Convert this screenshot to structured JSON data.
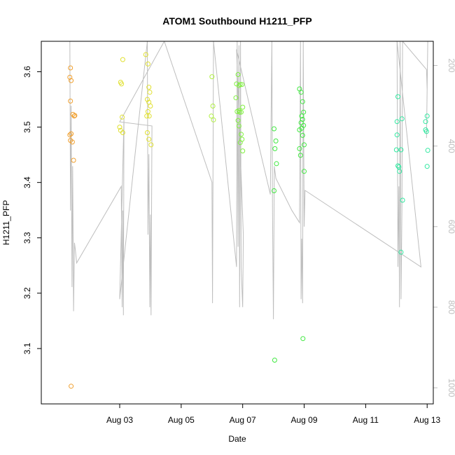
{
  "chart_data": {
    "type": "scatter",
    "title": "ATOM1 Southbound H1211_PFP",
    "xlabel": "Date",
    "ylabel": "H1211_PFP",
    "xlim": [
      0.45,
      13.2
    ],
    "ylim": [
      3.0,
      3.655
    ],
    "right_axis": {
      "range": [
        140,
        1040
      ],
      "reversed": true,
      "ticks": [
        200,
        400,
        600,
        800,
        1000
      ],
      "color": "#bebebe"
    },
    "x_ticks": [
      {
        "value": 3,
        "label": "Aug 03"
      },
      {
        "value": 5,
        "label": "Aug 05"
      },
      {
        "value": 7,
        "label": "Aug 07"
      },
      {
        "value": 9,
        "label": "Aug 09"
      },
      {
        "value": 11,
        "label": "Aug 11"
      },
      {
        "value": 13,
        "label": "Aug 13"
      }
    ],
    "y_ticks": [
      {
        "value": 3.1,
        "label": "3.1"
      },
      {
        "value": 3.2,
        "label": "3.2"
      },
      {
        "value": 3.3,
        "label": "3.3"
      },
      {
        "value": 3.4,
        "label": "3.4"
      },
      {
        "value": 3.5,
        "label": "3.5"
      },
      {
        "value": 3.6,
        "label": "3.6"
      }
    ],
    "grid": false,
    "legend": "none",
    "series": [
      {
        "color": "#f0a030",
        "points": [
          [
            1.4,
            3.607
          ],
          [
            1.38,
            3.59
          ],
          [
            1.42,
            3.584
          ],
          [
            1.4,
            3.547
          ],
          [
            1.48,
            3.523
          ],
          [
            1.52,
            3.52
          ],
          [
            1.54,
            3.521
          ],
          [
            1.42,
            3.488
          ],
          [
            1.38,
            3.486
          ],
          [
            1.4,
            3.476
          ],
          [
            1.46,
            3.473
          ],
          [
            1.5,
            3.44
          ],
          [
            1.42,
            3.032
          ]
        ]
      },
      {
        "color": "#e0e030",
        "points": [
          [
            3.1,
            3.622
          ],
          [
            3.03,
            3.581
          ],
          [
            3.06,
            3.578
          ],
          [
            3.0,
            3.5
          ],
          [
            3.08,
            3.518
          ],
          [
            3.03,
            3.494
          ],
          [
            3.1,
            3.49
          ],
          [
            3.85,
            3.631
          ],
          [
            3.92,
            3.614
          ],
          [
            3.95,
            3.572
          ],
          [
            3.98,
            3.563
          ],
          [
            3.9,
            3.55
          ],
          [
            3.95,
            3.545
          ],
          [
            4.0,
            3.538
          ],
          [
            3.92,
            3.528
          ],
          [
            3.96,
            3.52
          ],
          [
            3.88,
            3.52
          ],
          [
            3.9,
            3.49
          ],
          [
            3.95,
            3.478
          ],
          [
            4.02,
            3.468
          ]
        ]
      },
      {
        "color": "#b0f040",
        "points": [
          [
            6.0,
            3.591
          ],
          [
            6.03,
            3.538
          ],
          [
            5.98,
            3.52
          ],
          [
            6.05,
            3.513
          ]
        ]
      },
      {
        "color": "#80f040",
        "points": [
          [
            6.85,
            3.595
          ],
          [
            6.8,
            3.578
          ],
          [
            6.92,
            3.577
          ],
          [
            6.88,
            3.575
          ],
          [
            6.98,
            3.577
          ],
          [
            6.78,
            3.553
          ],
          [
            6.82,
            3.528
          ],
          [
            6.88,
            3.53
          ],
          [
            6.95,
            3.527
          ],
          [
            6.9,
            3.527
          ],
          [
            7.0,
            3.536
          ],
          [
            6.85,
            3.512
          ],
          [
            6.88,
            3.502
          ],
          [
            6.95,
            3.487
          ],
          [
            6.98,
            3.478
          ],
          [
            6.92,
            3.472
          ],
          [
            7.0,
            3.457
          ]
        ]
      },
      {
        "color": "#40e840",
        "points": [
          [
            8.02,
            3.497
          ],
          [
            8.08,
            3.475
          ],
          [
            8.05,
            3.461
          ],
          [
            8.1,
            3.434
          ],
          [
            8.02,
            3.385
          ],
          [
            8.04,
            3.079
          ],
          [
            8.85,
            3.569
          ],
          [
            8.9,
            3.563
          ],
          [
            8.95,
            3.546
          ],
          [
            8.98,
            3.527
          ],
          [
            8.92,
            3.52
          ],
          [
            8.95,
            3.514
          ],
          [
            8.9,
            3.508
          ],
          [
            8.98,
            3.503
          ],
          [
            8.92,
            3.498
          ],
          [
            8.85,
            3.495
          ],
          [
            8.95,
            3.485
          ],
          [
            9.0,
            3.468
          ],
          [
            8.85,
            3.461
          ],
          [
            8.88,
            3.449
          ],
          [
            9.0,
            3.42
          ],
          [
            8.96,
            3.118
          ]
        ]
      },
      {
        "color": "#30e8a0",
        "points": [
          [
            12.05,
            3.555
          ],
          [
            12.18,
            3.515
          ],
          [
            12.02,
            3.51
          ],
          [
            12.02,
            3.486
          ],
          [
            12.0,
            3.459
          ],
          [
            12.15,
            3.459
          ],
          [
            12.05,
            3.43
          ],
          [
            12.08,
            3.428
          ],
          [
            12.1,
            3.42
          ],
          [
            12.2,
            3.368
          ],
          [
            12.15,
            3.274
          ],
          [
            12.95,
            3.51
          ],
          [
            13.0,
            3.52
          ],
          [
            12.95,
            3.495
          ],
          [
            12.98,
            3.492
          ],
          [
            13.02,
            3.458
          ],
          [
            13.0,
            3.429
          ]
        ]
      }
    ],
    "altitude_line": {
      "color": "#bebebe",
      "points": [
        [
          1.38,
          140
        ],
        [
          1.4,
          560
        ],
        [
          1.42,
          300
        ],
        [
          1.45,
          750
        ],
        [
          1.47,
          450
        ],
        [
          1.5,
          810
        ],
        [
          1.53,
          640
        ],
        [
          1.56,
          660
        ],
        [
          1.6,
          690
        ],
        [
          3.05,
          500
        ],
        [
          3.08,
          800
        ],
        [
          3.1,
          560
        ],
        [
          3.12,
          820
        ],
        [
          3.14,
          330
        ],
        [
          3.0,
          780
        ],
        [
          3.5,
          420
        ],
        [
          3.9,
          140
        ],
        [
          3.92,
          620
        ],
        [
          3.95,
          420
        ],
        [
          3.98,
          800
        ],
        [
          4.0,
          570
        ],
        [
          4.02,
          820
        ],
        [
          4.05,
          350
        ],
        [
          3.0,
          340
        ],
        [
          4.45,
          140
        ],
        [
          6.0,
          490
        ],
        [
          6.02,
          790
        ],
        [
          6.05,
          140
        ],
        [
          6.8,
          700
        ],
        [
          6.82,
          140
        ],
        [
          6.85,
          650
        ],
        [
          6.88,
          150
        ],
        [
          6.9,
          800
        ],
        [
          6.93,
          140
        ],
        [
          6.95,
          700
        ],
        [
          7.0,
          800
        ],
        [
          7.02,
          620
        ],
        [
          6.8,
          160
        ],
        [
          7.5,
          390
        ],
        [
          7.9,
          520
        ],
        [
          7.95,
          140
        ],
        [
          7.97,
          560
        ],
        [
          8.0,
          830
        ],
        [
          8.03,
          450
        ],
        [
          8.08,
          480
        ],
        [
          8.6,
          560
        ],
        [
          8.85,
          590
        ],
        [
          8.88,
          140
        ],
        [
          8.9,
          780
        ],
        [
          8.92,
          630
        ],
        [
          8.95,
          790
        ],
        [
          8.97,
          140
        ],
        [
          9.0,
          600
        ],
        [
          9.03,
          510
        ],
        [
          12.8,
          700
        ],
        [
          12.02,
          140
        ],
        [
          12.05,
          700
        ],
        [
          12.08,
          500
        ],
        [
          12.1,
          800
        ],
        [
          12.12,
          140
        ],
        [
          12.15,
          780
        ],
        [
          12.18,
          560
        ],
        [
          12.2,
          140
        ],
        [
          12.98,
          210
        ],
        [
          13.0,
          260
        ],
        [
          13.02,
          140
        ],
        [
          12.98,
          380
        ]
      ]
    }
  }
}
